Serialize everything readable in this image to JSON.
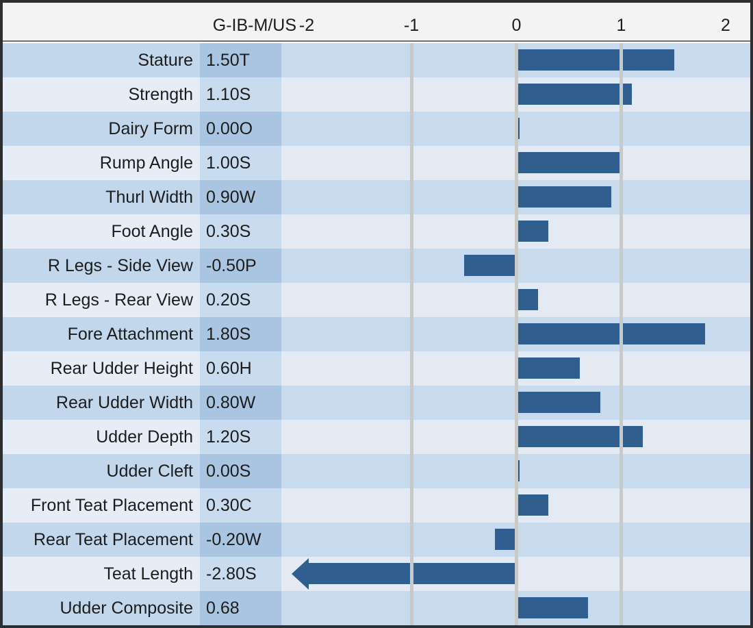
{
  "header": {
    "scale_label": "G-IB-M/US",
    "ticks": [
      "-2",
      "-1",
      "0",
      "1",
      "2"
    ]
  },
  "colors": {
    "bar": "#2F5E8F",
    "odd_row_label_bg": "#c2d6ec",
    "odd_row_value_bg": "#a9c5e2",
    "odd_row_chart_bg": "#c8daee",
    "even_row_label_bg": "#e6edf7",
    "even_row_value_bg": "#c9dbee",
    "even_row_chart_bg": "#e3eaf3",
    "header_bg": "#f3f3f3",
    "gridline": "#c9c9c7",
    "frame_border": "#2e2e2e"
  },
  "chart_data": {
    "type": "bar",
    "orientation": "horizontal",
    "title": "G-IB-M/US linear type trait chart",
    "xlim": [
      -2.25,
      2.25
    ],
    "tick_values": [
      -2,
      -1,
      0,
      1,
      2
    ],
    "gridlines_at": [
      -1,
      0,
      1
    ],
    "grid": true,
    "legend": false,
    "rows": [
      {
        "trait": "Stature",
        "value_label": "1.50T",
        "value": 1.5
      },
      {
        "trait": "Strength",
        "value_label": "1.10S",
        "value": 1.1
      },
      {
        "trait": "Dairy Form",
        "value_label": "0.00O",
        "value": 0.0
      },
      {
        "trait": "Rump Angle",
        "value_label": "1.00S",
        "value": 1.0
      },
      {
        "trait": "Thurl Width",
        "value_label": "0.90W",
        "value": 0.9
      },
      {
        "trait": "Foot Angle",
        "value_label": "0.30S",
        "value": 0.3
      },
      {
        "trait": "R Legs - Side View",
        "value_label": "-0.50P",
        "value": -0.5
      },
      {
        "trait": "R Legs - Rear View",
        "value_label": "0.20S",
        "value": 0.2
      },
      {
        "trait": "Fore Attachment",
        "value_label": "1.80S",
        "value": 1.8
      },
      {
        "trait": "Rear Udder Height",
        "value_label": "0.60H",
        "value": 0.6
      },
      {
        "trait": "Rear Udder Width",
        "value_label": "0.80W",
        "value": 0.8
      },
      {
        "trait": "Udder Depth",
        "value_label": "1.20S",
        "value": 1.2
      },
      {
        "trait": "Udder Cleft",
        "value_label": "0.00S",
        "value": 0.0
      },
      {
        "trait": "Front Teat Placement",
        "value_label": "0.30C",
        "value": 0.3
      },
      {
        "trait": "Rear Teat Placement",
        "value_label": "-0.20W",
        "value": -0.2
      },
      {
        "trait": "Teat Length",
        "value_label": "-2.80S",
        "value": -2.8,
        "clipped_with_arrow": true
      },
      {
        "trait": "Udder Composite",
        "value_label": "0.68",
        "value": 0.68
      }
    ]
  }
}
